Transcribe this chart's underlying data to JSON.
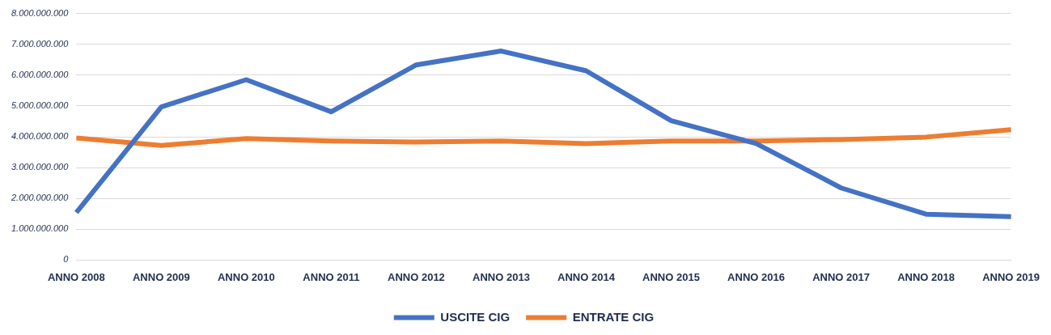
{
  "chart_data": {
    "type": "line",
    "categories": [
      "ANNO 2008",
      "ANNO 2009",
      "ANNO 2010",
      "ANNO 2011",
      "ANNO 2012",
      "ANNO 2013",
      "ANNO 2014",
      "ANNO 2015",
      "ANNO 2016",
      "ANNO 2017",
      "ANNO 2018",
      "ANNO 2019"
    ],
    "series": [
      {
        "name": "USCITE CIG",
        "color": "#4472c4",
        "values": [
          1540000000,
          4970000000,
          5850000000,
          4810000000,
          6330000000,
          6780000000,
          6140000000,
          4520000000,
          3780000000,
          2340000000,
          1490000000,
          1410000000
        ]
      },
      {
        "name": "ENTRATE CIG",
        "color": "#ed7d31",
        "values": [
          3960000000,
          3720000000,
          3940000000,
          3860000000,
          3830000000,
          3860000000,
          3780000000,
          3860000000,
          3860000000,
          3910000000,
          3990000000,
          4230000000
        ]
      }
    ],
    "ylim": [
      0,
      8000000000
    ],
    "yticks": [
      {
        "value": 0,
        "label": "0"
      },
      {
        "value": 1000000000,
        "label": "1.000.000.000"
      },
      {
        "value": 2000000000,
        "label": "2.000.000.000"
      },
      {
        "value": 3000000000,
        "label": "3.000.000.000"
      },
      {
        "value": 4000000000,
        "label": "4.000.000.000"
      },
      {
        "value": 5000000000,
        "label": "5.000.000.000"
      },
      {
        "value": 6000000000,
        "label": "6.000.000.000"
      },
      {
        "value": 7000000000,
        "label": "7.000.000.000"
      },
      {
        "value": 8000000000,
        "label": "8.000.000.000"
      }
    ],
    "grid": "y",
    "legend": "bottom",
    "marker": "none",
    "line_style": "solid"
  }
}
